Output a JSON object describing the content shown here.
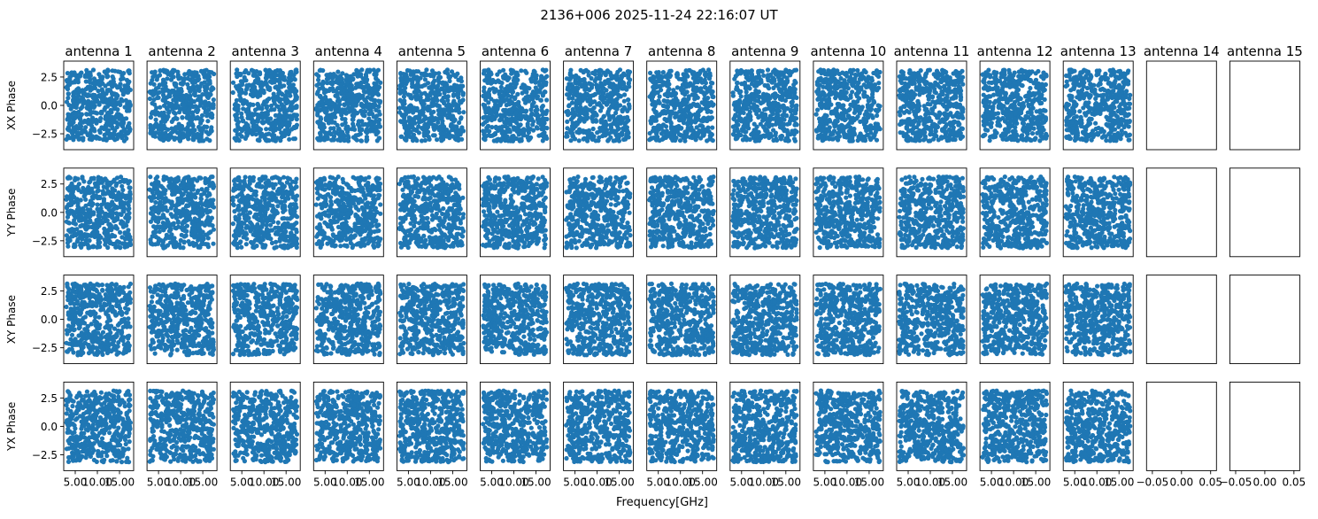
{
  "figure": {
    "title": "2136+006 2025-11-24 22:16:07 UT",
    "xlabel": "Frequency[GHz]"
  },
  "chart_data": {
    "type": "scatter",
    "title": "2136+006 2025-11-24 22:16:07 UT",
    "xlabel": "Frequency[GHz]",
    "marker_color": "#1f77b4",
    "antennas": [
      "antenna 1",
      "antenna 2",
      "antenna 3",
      "antenna 4",
      "antenna 5",
      "antenna 6",
      "antenna 7",
      "antenna 8",
      "antenna 9",
      "antenna 10",
      "antenna 11",
      "antenna 12",
      "antenna 13",
      "antenna 14",
      "antenna 15"
    ],
    "rows": [
      {
        "ylabel": "XX Phase"
      },
      {
        "ylabel": "YY Phase"
      },
      {
        "ylabel": "XY Phase"
      },
      {
        "ylabel": "YX Phase"
      }
    ],
    "data_panels": 13,
    "empty_panels": 2,
    "xlim": [
      2.4,
      18.2
    ],
    "ylim": [
      -3.9,
      3.9
    ],
    "yticks": [
      -2.5,
      0.0,
      2.5
    ],
    "ytick_labels": [
      "−2.5",
      "0.0",
      "2.5"
    ],
    "xticks": [
      5,
      10,
      15
    ],
    "xtick_labels": [
      "5.00",
      "10.00",
      "15.00"
    ],
    "empty_xlim": [
      -0.06,
      0.06
    ],
    "empty_xticks": [
      -0.05,
      0.0,
      0.05
    ],
    "empty_xtick_labels": [
      "−0.05",
      "0.00",
      "0.05"
    ],
    "points_per_panel": 480,
    "phase_range": [
      -3.1416,
      3.1416
    ],
    "frequency_range": [
      3.0,
      17.5
    ],
    "note_values": "phases uniformly scattered over [-pi, pi] across 3-17.5 GHz"
  }
}
